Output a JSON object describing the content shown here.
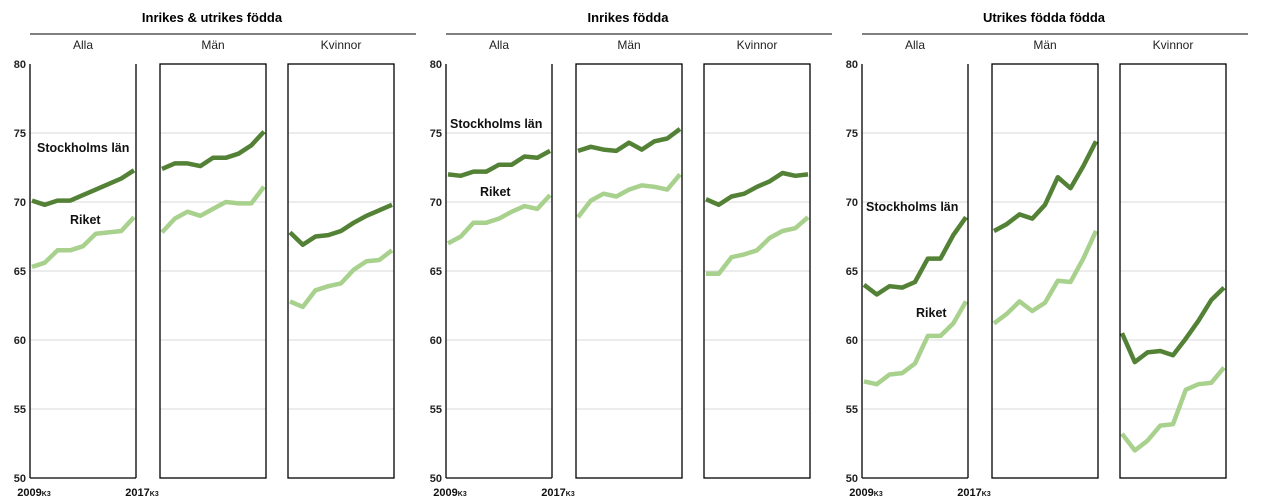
{
  "chart_data": {
    "type": "line",
    "x_ticks": [
      {
        "main": "2009",
        "sub": "K3"
      },
      {
        "main": "2017",
        "sub": "K3"
      }
    ],
    "ylim": [
      50,
      80
    ],
    "yticks": [
      50,
      55,
      60,
      65,
      70,
      75,
      80
    ],
    "grid": true,
    "colors": {
      "Stockholms län": "#538135",
      "Riket": "#a9d18e"
    },
    "groups": [
      {
        "title": "Inrikes & utrikes födda",
        "panels": [
          {
            "name": "Alla",
            "series": [
              {
                "name": "Stockholms län",
                "values": [
                  70.1,
                  69.8,
                  70.1,
                  70.1,
                  70.5,
                  70.9,
                  71.3,
                  71.7,
                  72.3
                ]
              },
              {
                "name": "Riket",
                "values": [
                  65.3,
                  65.6,
                  66.5,
                  66.5,
                  66.8,
                  67.7,
                  67.8,
                  67.9,
                  68.9
                ]
              }
            ]
          },
          {
            "name": "Män",
            "series": [
              {
                "name": "Stockholms län",
                "values": [
                  72.4,
                  72.8,
                  72.8,
                  72.6,
                  73.2,
                  73.2,
                  73.5,
                  74.1,
                  75.1
                ]
              },
              {
                "name": "Riket",
                "values": [
                  67.8,
                  68.8,
                  69.3,
                  69.0,
                  69.5,
                  70.0,
                  69.9,
                  69.9,
                  71.1
                ]
              }
            ]
          },
          {
            "name": "Kvinnor",
            "series": [
              {
                "name": "Stockholms län",
                "values": [
                  67.8,
                  66.9,
                  67.5,
                  67.6,
                  67.9,
                  68.5,
                  69.0,
                  69.4,
                  69.8
                ]
              },
              {
                "name": "Riket",
                "values": [
                  62.8,
                  62.4,
                  63.6,
                  63.9,
                  64.1,
                  65.1,
                  65.7,
                  65.8,
                  66.5
                ]
              }
            ]
          }
        ],
        "labels": {
          "Stockholms län": "Stockholms län",
          "Riket": "Riket"
        }
      },
      {
        "title": "Inrikes födda",
        "panels": [
          {
            "name": "Alla",
            "series": [
              {
                "name": "Stockholms län",
                "values": [
                  72.0,
                  71.9,
                  72.2,
                  72.2,
                  72.7,
                  72.7,
                  73.3,
                  73.2,
                  73.7
                ]
              },
              {
                "name": "Riket",
                "values": [
                  67.0,
                  67.5,
                  68.5,
                  68.5,
                  68.8,
                  69.3,
                  69.7,
                  69.5,
                  70.5
                ]
              }
            ]
          },
          {
            "name": "Män",
            "series": [
              {
                "name": "Stockholms län",
                "values": [
                  73.7,
                  74.0,
                  73.8,
                  73.7,
                  74.3,
                  73.8,
                  74.4,
                  74.6,
                  75.3
                ]
              },
              {
                "name": "Riket",
                "values": [
                  68.9,
                  70.1,
                  70.6,
                  70.4,
                  70.9,
                  71.2,
                  71.1,
                  70.9,
                  72.0
                ]
              }
            ]
          },
          {
            "name": "Kvinnor",
            "series": [
              {
                "name": "Stockholms län",
                "values": [
                  70.2,
                  69.8,
                  70.4,
                  70.6,
                  71.1,
                  71.5,
                  72.1,
                  71.9,
                  72.0
                ]
              },
              {
                "name": "Riket",
                "values": [
                  64.8,
                  64.8,
                  66.0,
                  66.2,
                  66.5,
                  67.4,
                  67.9,
                  68.1,
                  68.9
                ]
              }
            ]
          }
        ],
        "labels": {
          "Stockholms län": "Stockholms län",
          "Riket": "Riket"
        }
      },
      {
        "title": "Utrikes födda födda",
        "panels": [
          {
            "name": "Alla",
            "series": [
              {
                "name": "Stockholms län",
                "values": [
                  64.0,
                  63.3,
                  63.9,
                  63.8,
                  64.2,
                  65.9,
                  65.9,
                  67.6,
                  68.9
                ]
              },
              {
                "name": "Riket",
                "values": [
                  57.0,
                  56.8,
                  57.5,
                  57.6,
                  58.3,
                  60.3,
                  60.3,
                  61.2,
                  62.8
                ]
              }
            ]
          },
          {
            "name": "Män",
            "series": [
              {
                "name": "Stockholms län",
                "values": [
                  67.9,
                  68.4,
                  69.1,
                  68.8,
                  69.8,
                  71.8,
                  71.0,
                  72.6,
                  74.4
                ]
              },
              {
                "name": "Riket",
                "values": [
                  61.2,
                  61.9,
                  62.8,
                  62.1,
                  62.7,
                  64.3,
                  64.2,
                  65.9,
                  67.9
                ]
              }
            ]
          },
          {
            "name": "Kvinnor",
            "series": [
              {
                "name": "Stockholms län",
                "values": [
                  60.5,
                  58.4,
                  59.1,
                  59.2,
                  58.9,
                  60.1,
                  61.4,
                  62.9,
                  63.8
                ]
              },
              {
                "name": "Riket",
                "values": [
                  53.2,
                  52.0,
                  52.7,
                  53.8,
                  53.9,
                  56.4,
                  56.8,
                  56.9,
                  58.0
                ]
              }
            ]
          }
        ],
        "labels": {
          "Stockholms län": "Stockholms län",
          "Riket": "Riket"
        }
      }
    ]
  }
}
